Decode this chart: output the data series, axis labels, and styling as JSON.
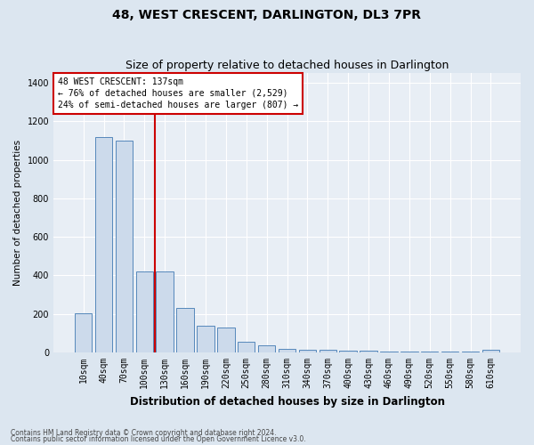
{
  "title": "48, WEST CRESCENT, DARLINGTON, DL3 7PR",
  "subtitle": "Size of property relative to detached houses in Darlington",
  "xlabel": "Distribution of detached houses by size in Darlington",
  "ylabel": "Number of detached properties",
  "categories": [
    "10sqm",
    "40sqm",
    "70sqm",
    "100sqm",
    "130sqm",
    "160sqm",
    "190sqm",
    "220sqm",
    "250sqm",
    "280sqm",
    "310sqm",
    "340sqm",
    "370sqm",
    "400sqm",
    "430sqm",
    "460sqm",
    "490sqm",
    "520sqm",
    "550sqm",
    "580sqm",
    "610sqm"
  ],
  "bar_heights": [
    205,
    1120,
    1100,
    420,
    420,
    230,
    140,
    130,
    55,
    35,
    20,
    15,
    12,
    10,
    8,
    6,
    5,
    5,
    4,
    4,
    12
  ],
  "bar_color": "#ccdaeb",
  "bar_edge_color": "#5588bb",
  "vline_position": 3.5,
  "vline_color": "#cc0000",
  "annotation_text": "48 WEST CRESCENT: 137sqm\n← 76% of detached houses are smaller (2,529)\n24% of semi-detached houses are larger (807) →",
  "annotation_box_facecolor": "#ffffff",
  "annotation_box_edgecolor": "#cc0000",
  "footer1": "Contains HM Land Registry data © Crown copyright and database right 2024.",
  "footer2": "Contains public sector information licensed under the Open Government Licence v3.0.",
  "fig_facecolor": "#dce6f0",
  "plot_facecolor": "#e8eef5",
  "grid_color": "#ffffff",
  "ylim": [
    0,
    1450
  ],
  "yticks": [
    0,
    200,
    400,
    600,
    800,
    1000,
    1200,
    1400
  ],
  "title_fontsize": 10,
  "subtitle_fontsize": 9,
  "ylabel_fontsize": 7.5,
  "xlabel_fontsize": 8.5,
  "tick_fontsize": 7,
  "annot_fontsize": 7,
  "footer_fontsize": 5.5
}
